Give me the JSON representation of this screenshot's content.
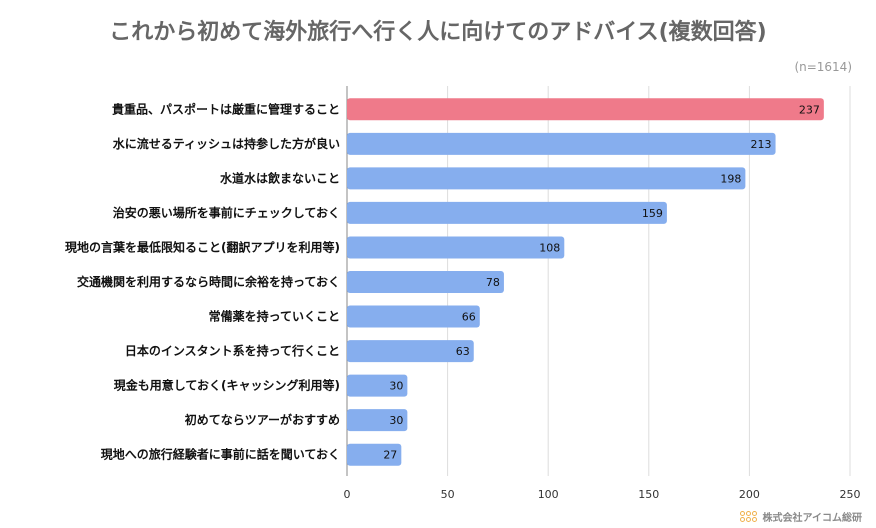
{
  "title": "これから初めて海外旅行へ行く人に向けてのアドバイス(複数回答)",
  "note": "(n=1614)",
  "footer": {
    "brand": "株式会社アイコム総研"
  },
  "colors": {
    "highlight": "#ef7a8a",
    "bar": "#86aeee",
    "grid": "#dddddd"
  },
  "chart_data": {
    "type": "bar",
    "orientation": "horizontal",
    "title": "これから初めて海外旅行へ行く人に向けてのアドバイス(複数回答)",
    "categories": [
      "貴重品、パスポートは厳重に管理すること",
      "水に流せるティッシュは持参した方が良い",
      "水道水は飲まないこと",
      "治安の悪い場所を事前にチェックしておく",
      "現地の言葉を最低限知ること(翻訳アプリを利用等)",
      "交通機関を利用するなら時間に余裕を持っておく",
      "常備薬を持っていくこと",
      "日本のインスタント系を持って行くこと",
      "現金も用意しておく(キャッシング利用等)",
      "初めてならツアーがおすすめ",
      "現地への旅行経験者に事前に話を聞いておく"
    ],
    "values": [
      237,
      213,
      198,
      159,
      108,
      78,
      66,
      63,
      30,
      30,
      27
    ],
    "highlight_index": 0,
    "xlim": [
      0,
      250
    ],
    "xticks": [
      0,
      50,
      100,
      150,
      200,
      250
    ],
    "grid": true,
    "legend": "none"
  }
}
